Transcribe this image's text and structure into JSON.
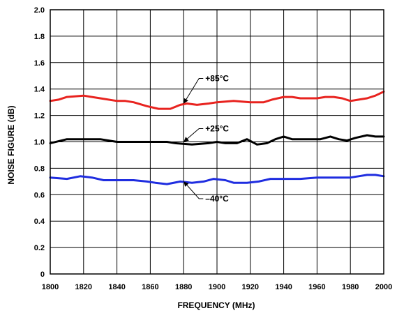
{
  "chart_data": {
    "type": "line",
    "xlabel": "FREQUENCY (MHz)",
    "ylabel": "NOISE FIGURE (dB)",
    "xlim": [
      1800,
      2000
    ],
    "ylim": [
      0,
      2.0
    ],
    "x_ticks": [
      "1800",
      "1820",
      "1840",
      "1860",
      "1880",
      "1900",
      "1920",
      "1940",
      "1960",
      "1980",
      "2000"
    ],
    "y_ticks": [
      "0",
      "0.2",
      "0.4",
      "0.6",
      "0.8",
      "1.0",
      "1.2",
      "1.4",
      "1.6",
      "1.8",
      "2.0"
    ],
    "grid": true,
    "series": [
      {
        "name": "+85°C",
        "color": "#e8231f",
        "label_at": {
          "x": 1893,
          "y": 1.48
        },
        "arrow_to": {
          "x": 1880,
          "y": 1.29
        },
        "points": [
          [
            1800,
            1.31
          ],
          [
            1805,
            1.32
          ],
          [
            1810,
            1.34
          ],
          [
            1820,
            1.35
          ],
          [
            1830,
            1.33
          ],
          [
            1840,
            1.31
          ],
          [
            1845,
            1.31
          ],
          [
            1850,
            1.3
          ],
          [
            1858,
            1.27
          ],
          [
            1865,
            1.25
          ],
          [
            1872,
            1.25
          ],
          [
            1878,
            1.28
          ],
          [
            1882,
            1.29
          ],
          [
            1888,
            1.28
          ],
          [
            1895,
            1.29
          ],
          [
            1900,
            1.3
          ],
          [
            1910,
            1.31
          ],
          [
            1920,
            1.3
          ],
          [
            1928,
            1.3
          ],
          [
            1933,
            1.32
          ],
          [
            1940,
            1.34
          ],
          [
            1945,
            1.34
          ],
          [
            1950,
            1.33
          ],
          [
            1960,
            1.33
          ],
          [
            1965,
            1.34
          ],
          [
            1970,
            1.34
          ],
          [
            1975,
            1.33
          ],
          [
            1980,
            1.31
          ],
          [
            1985,
            1.32
          ],
          [
            1990,
            1.33
          ],
          [
            1995,
            1.35
          ],
          [
            2000,
            1.38
          ]
        ]
      },
      {
        "name": "+25°C",
        "color": "#000000",
        "label_at": {
          "x": 1893,
          "y": 1.1
        },
        "arrow_to": {
          "x": 1880,
          "y": 1.0
        },
        "points": [
          [
            1800,
            0.99
          ],
          [
            1810,
            1.02
          ],
          [
            1820,
            1.02
          ],
          [
            1830,
            1.02
          ],
          [
            1840,
            1.0
          ],
          [
            1850,
            1.0
          ],
          [
            1860,
            1.0
          ],
          [
            1870,
            1.0
          ],
          [
            1875,
            0.99
          ],
          [
            1885,
            0.98
          ],
          [
            1895,
            0.99
          ],
          [
            1900,
            1.0
          ],
          [
            1905,
            0.99
          ],
          [
            1912,
            0.99
          ],
          [
            1918,
            1.02
          ],
          [
            1924,
            0.98
          ],
          [
            1930,
            0.99
          ],
          [
            1935,
            1.02
          ],
          [
            1940,
            1.04
          ],
          [
            1945,
            1.02
          ],
          [
            1955,
            1.02
          ],
          [
            1962,
            1.02
          ],
          [
            1968,
            1.04
          ],
          [
            1973,
            1.02
          ],
          [
            1978,
            1.01
          ],
          [
            1983,
            1.03
          ],
          [
            1990,
            1.05
          ],
          [
            1995,
            1.04
          ],
          [
            2000,
            1.04
          ]
        ]
      },
      {
        "name": "–40°C",
        "color": "#1f2de0",
        "label_at": {
          "x": 1893,
          "y": 0.57
        },
        "arrow_to": {
          "x": 1880,
          "y": 0.7
        },
        "points": [
          [
            1800,
            0.73
          ],
          [
            1810,
            0.72
          ],
          [
            1818,
            0.74
          ],
          [
            1825,
            0.73
          ],
          [
            1832,
            0.71
          ],
          [
            1840,
            0.71
          ],
          [
            1850,
            0.71
          ],
          [
            1858,
            0.7
          ],
          [
            1863,
            0.69
          ],
          [
            1870,
            0.68
          ],
          [
            1878,
            0.7
          ],
          [
            1885,
            0.69
          ],
          [
            1892,
            0.7
          ],
          [
            1898,
            0.72
          ],
          [
            1905,
            0.71
          ],
          [
            1910,
            0.69
          ],
          [
            1918,
            0.69
          ],
          [
            1925,
            0.7
          ],
          [
            1932,
            0.72
          ],
          [
            1940,
            0.72
          ],
          [
            1950,
            0.72
          ],
          [
            1960,
            0.73
          ],
          [
            1965,
            0.73
          ],
          [
            1970,
            0.73
          ],
          [
            1980,
            0.73
          ],
          [
            1985,
            0.74
          ],
          [
            1990,
            0.75
          ],
          [
            1995,
            0.75
          ],
          [
            2000,
            0.74
          ]
        ]
      }
    ]
  }
}
